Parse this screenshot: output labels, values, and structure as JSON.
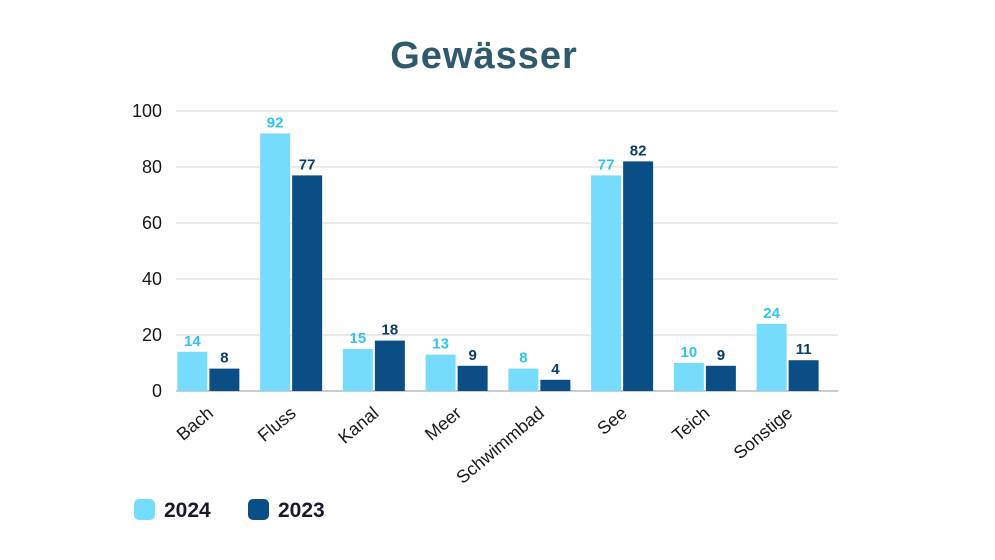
{
  "chart_data": {
    "type": "bar",
    "title": "Gewässer",
    "categories": [
      "Bach",
      "Fluss",
      "Kanal",
      "Meer",
      "Schwimmbad",
      "See",
      "Teich",
      "Sonstige"
    ],
    "series": [
      {
        "name": "2024",
        "color": "#77dcfc",
        "label_color": "#2ec4f0",
        "values": [
          14,
          92,
          15,
          13,
          8,
          77,
          10,
          24
        ]
      },
      {
        "name": "2023",
        "color": "#0a4e85",
        "label_color": "#0a3d6b",
        "values": [
          8,
          77,
          18,
          9,
          4,
          82,
          9,
          11
        ]
      }
    ],
    "ylim": [
      0,
      100
    ],
    "yticks": [
      0,
      20,
      40,
      60,
      80,
      100
    ],
    "grid": true,
    "legend_position": "bottom-left",
    "title_color": "#2f5a6e",
    "xlabel": "",
    "ylabel": ""
  }
}
